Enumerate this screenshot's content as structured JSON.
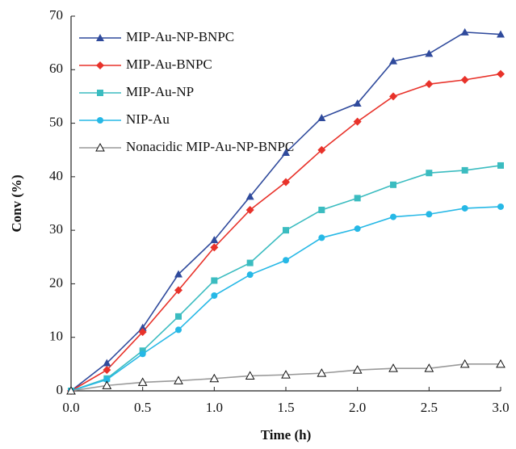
{
  "chart_data": {
    "type": "line",
    "x_label": "Time (h)",
    "y_label": "Conv (%)",
    "x": [
      0,
      0.25,
      0.5,
      0.75,
      1.0,
      1.25,
      1.5,
      1.75,
      2.0,
      2.25,
      2.5,
      2.75,
      3.0
    ],
    "series": [
      {
        "name": "MIP-Au-NP-BNPC",
        "color": "#2f4a9c",
        "marker": "triangle",
        "values": [
          0,
          5.2,
          11.8,
          21.8,
          28.2,
          36.3,
          44.5,
          51.0,
          53.7,
          61.6,
          63.0,
          67.0,
          66.6
        ]
      },
      {
        "name": "MIP-Au-BNPC",
        "color": "#e8322a",
        "marker": "diamond",
        "values": [
          0,
          3.9,
          11.0,
          18.8,
          26.8,
          33.8,
          39.0,
          45.0,
          50.3,
          55.0,
          57.3,
          58.1,
          59.2
        ]
      },
      {
        "name": "MIP-Au-NP",
        "color": "#3bbcc0",
        "marker": "square",
        "values": [
          0,
          2.3,
          7.5,
          13.9,
          20.6,
          23.9,
          30.0,
          33.8,
          36.0,
          38.5,
          40.7,
          41.2,
          42.1
        ]
      },
      {
        "name": "NIP-Au",
        "color": "#26b8e6",
        "marker": "circle",
        "values": [
          0,
          2.1,
          6.9,
          11.4,
          17.8,
          21.7,
          24.4,
          28.6,
          30.3,
          32.5,
          33.0,
          34.1,
          34.4
        ]
      },
      {
        "name": "Nonacidic MIP-Au-NP-BNPC",
        "color": "#999999",
        "marker": "open-triangle",
        "values": [
          0,
          1.0,
          1.6,
          1.9,
          2.3,
          2.8,
          3.0,
          3.3,
          3.9,
          4.2,
          4.2,
          5.0,
          5.0
        ]
      }
    ],
    "xlim": [
      0,
      3.0
    ],
    "xticks": [
      {
        "value": 0,
        "label": "0.0"
      },
      {
        "value": 0.5,
        "label": "0.5"
      },
      {
        "value": 1.0,
        "label": "1.0"
      },
      {
        "value": 1.5,
        "label": "1.5"
      },
      {
        "value": 2.0,
        "label": "2.0"
      },
      {
        "value": 2.5,
        "label": "2.5"
      },
      {
        "value": 3.0,
        "label": "3.0"
      }
    ],
    "ylim": [
      0,
      70
    ],
    "yticks": [
      0,
      10,
      20,
      30,
      40,
      50,
      60,
      70
    ],
    "grid": false,
    "legend": "upper-left"
  }
}
